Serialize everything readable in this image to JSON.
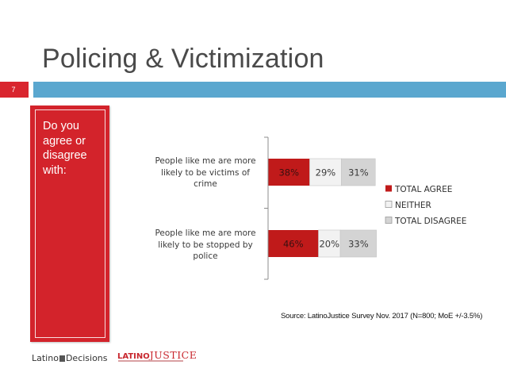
{
  "slide": {
    "title": "Policing & Victimization",
    "number": "7",
    "sidebar_text": "Do you\nagree or\ndisagree\nwith:",
    "source": "Source: LatinoJustice Survey Nov. 2017 (N=800; MoE +/-3.5%)",
    "colors": {
      "accent_red": "#d3232b",
      "rule_blue": "#5aa7cf"
    }
  },
  "logos": {
    "latino_decisions": {
      "word1": "Latino",
      "word2": "Decisions"
    },
    "latino_justice": {
      "word1": "LATINO",
      "word2": "JUSTICE"
    }
  },
  "chart_data": {
    "type": "bar",
    "orientation": "horizontal",
    "stacked": true,
    "categories": [
      "People like me are more likely to be victims of crime",
      "People like me are more likely to be stopped by police"
    ],
    "category_lines": [
      [
        "People like me are more",
        "likely to be victims of",
        "crime"
      ],
      [
        "People like me are more",
        "likely to be stopped by",
        "police"
      ]
    ],
    "series": [
      {
        "name": "TOTAL AGREE",
        "values": [
          38,
          46
        ],
        "labels": [
          "38%",
          "46%"
        ],
        "color": "#c01a1a",
        "label_color": "#3a1010"
      },
      {
        "name": "NEITHER",
        "values": [
          29,
          20
        ],
        "labels": [
          "29%",
          "20%"
        ],
        "color": "#f2f2f2",
        "label_color": "#3a3a3a"
      },
      {
        "name": "TOTAL DISAGREE",
        "values": [
          31,
          33
        ],
        "labels": [
          "31%",
          "33%"
        ],
        "color": "#d4d4d4",
        "label_color": "#3a3a3a"
      }
    ],
    "value_unit": "%",
    "xlim": [
      0,
      100
    ],
    "legend_position": "right",
    "grid": false
  }
}
